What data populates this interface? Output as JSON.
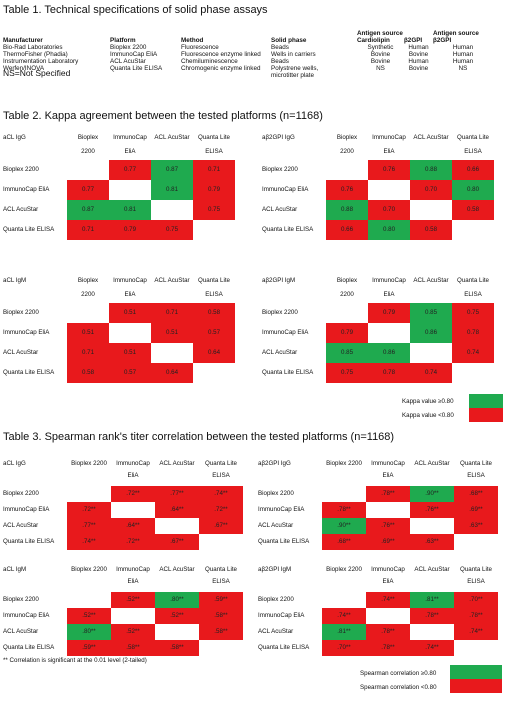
{
  "colors": {
    "green": "#1faa4f",
    "red": "#e8191c"
  },
  "table1": {
    "title": "Table 1. Technical specifications of solid phase assays",
    "headers": [
      "Manufacturer",
      "Platform",
      "Method",
      "Solid phase",
      "Cardiolipin",
      "β2GPI",
      "β2GPI"
    ],
    "group_headers": [
      "Antigen source",
      "Antigen source"
    ],
    "rows": [
      [
        "Bio-Rad Laboratories",
        "Bioplex 2200",
        "Fluorescence",
        "Beads",
        "Synthetic",
        "Human",
        "Human"
      ],
      [
        "ThermoFisher (Phadia)",
        "ImmunoCap EliA",
        "Fluorescence enzyme linked",
        "Wells in carriers",
        "Bovine",
        "Bovine",
        "Human"
      ],
      [
        "Instrumentation Laboratory",
        "ACL AcuStar",
        "Chemiluminescence",
        "Beads",
        "Bovine",
        "Human",
        "Human"
      ],
      [
        "Werfen/INOVA",
        "Quanta Lite ELISA",
        "Chromogenic enzyme linked",
        "Polystrene wells,",
        "NS",
        "Bovine",
        "NS"
      ]
    ],
    "solid_phase_cont": "microtitter plate",
    "note": "NS=Not Specified"
  },
  "table2": {
    "title": "Table 2. Kappa agreement between the tested platforms (n=1168)",
    "col_headers": [
      "Bioplex",
      "ImmunoCap",
      "ACL AcuStar",
      "Quanta Lite"
    ],
    "col_headers2": [
      "2200",
      "EliA",
      "",
      "ELISA"
    ],
    "row_labels": [
      "Bioplex 2200",
      "ImmunoCap EliA",
      "ACL AcuStar",
      "Quanta Lite ELISA"
    ],
    "matrices": [
      {
        "name": "aCL IgG",
        "values": [
          [
            "",
            "0.77",
            "0.87",
            "0.71"
          ],
          [
            "0.77",
            "",
            "0.81",
            "0.79"
          ],
          [
            "0.87",
            "0.81",
            "",
            "0.75"
          ],
          [
            "0.71",
            "0.79",
            "0.75",
            ""
          ]
        ]
      },
      {
        "name": "aβ2GPI IgG",
        "values": [
          [
            "",
            "0.76",
            "0.88",
            "0.66"
          ],
          [
            "0.76",
            "",
            "0.70",
            "0.80"
          ],
          [
            "0.88",
            "0.70",
            "",
            "0.58"
          ],
          [
            "0.66",
            "0.80",
            "0.58",
            ""
          ]
        ]
      },
      {
        "name": "aCL IgM",
        "values": [
          [
            "",
            "0.51",
            "0.71",
            "0.58"
          ],
          [
            "0.51",
            "",
            "0.51",
            "0.57"
          ],
          [
            "0.71",
            "0.51",
            "",
            "0.64"
          ],
          [
            "0.58",
            "0.57",
            "0.64",
            ""
          ]
        ]
      },
      {
        "name": "aβ2GPI IgM",
        "values": [
          [
            "",
            "0.79",
            "0.85",
            "0.75"
          ],
          [
            "0.79",
            "",
            "0.86",
            "0.78"
          ],
          [
            "0.85",
            "0.86",
            "",
            "0.74"
          ],
          [
            "0.75",
            "0.78",
            "0.74",
            ""
          ]
        ]
      }
    ],
    "legend": [
      "Kappa value ≥0.80",
      "Kappa value <0.80"
    ]
  },
  "table3": {
    "title": "Table 3. Spearman rank's titer correlation between the tested platforms (n=1168)",
    "col_headers": [
      "Bioplex 2200",
      "ImmunoCap",
      "ACL AcuStar",
      "Quanta Lite"
    ],
    "col_headers2": [
      "",
      "EliA",
      "",
      "ELISA"
    ],
    "row_labels": [
      "Bioplex 2200",
      "ImmunoCap EliA",
      "ACL AcuStar",
      "Quanta Lite ELISA"
    ],
    "matrices": [
      {
        "name": "aCL IgG",
        "values": [
          [
            "",
            ".72**",
            ".77**",
            ".74**"
          ],
          [
            ".72**",
            "",
            ".64**",
            ".72**"
          ],
          [
            ".77**",
            ".64**",
            "",
            ".67**"
          ],
          [
            ".74**",
            ".72**",
            ".67**",
            ""
          ]
        ]
      },
      {
        "name": "aβ2GPI IgG",
        "values": [
          [
            "",
            ".78**",
            ".90**",
            ".68**"
          ],
          [
            ".78**",
            "",
            ".76**",
            ".69**"
          ],
          [
            ".90**",
            ".76**",
            "",
            ".63**"
          ],
          [
            ".68**",
            ".69**",
            ".63**",
            ""
          ]
        ]
      },
      {
        "name": "aCL IgM",
        "values": [
          [
            "",
            ".52**",
            ".80**",
            ".59**"
          ],
          [
            ".52**",
            "",
            ".52**",
            ".58**"
          ],
          [
            ".80**",
            ".52**",
            "",
            ".58**"
          ],
          [
            ".59**",
            ".58**",
            ".58**",
            ""
          ]
        ]
      },
      {
        "name": "aβ2GPI IgM",
        "values": [
          [
            "",
            ".74**",
            ".81**",
            ".70**"
          ],
          [
            ".74**",
            "",
            ".78**",
            ".78**"
          ],
          [
            ".81**",
            ".78**",
            "",
            ".74**"
          ],
          [
            ".70**",
            ".78**",
            ".74**",
            ""
          ]
        ]
      }
    ],
    "footnote": "** Correlation is significant at the 0.01 level (2-tailed)",
    "legend": [
      "Spearman correlation ≥0.80",
      "Spearman correlation <0.80"
    ]
  }
}
